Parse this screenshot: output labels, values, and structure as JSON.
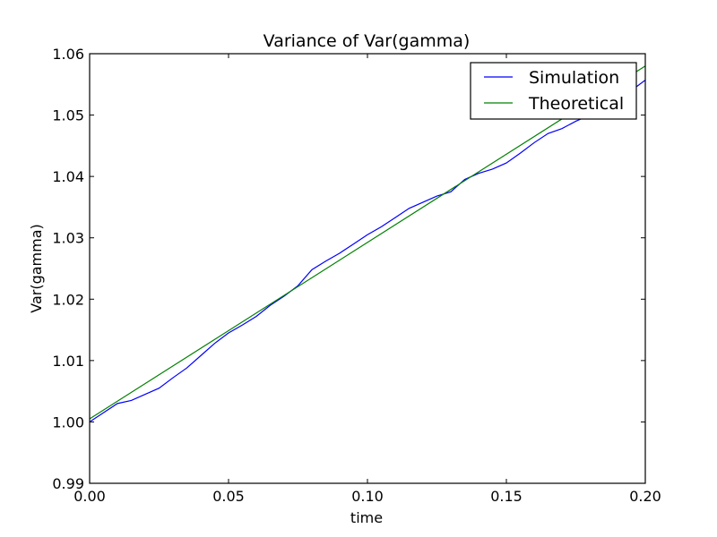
{
  "chart_data": {
    "type": "line",
    "title": "Variance of Var(gamma)",
    "xlabel": "time",
    "ylabel": "Var(gamma)",
    "xlim": [
      0.0,
      0.2
    ],
    "ylim": [
      0.99,
      1.06
    ],
    "xticks": [
      0.0,
      0.05,
      0.1,
      0.15,
      0.2
    ],
    "xtick_labels": [
      "0.00",
      "0.05",
      "0.10",
      "0.15",
      "0.20"
    ],
    "yticks": [
      0.99,
      1.0,
      1.01,
      1.02,
      1.03,
      1.04,
      1.05,
      1.06
    ],
    "ytick_labels": [
      "0.99",
      "1.00",
      "1.01",
      "1.02",
      "1.03",
      "1.04",
      "1.05",
      "1.06"
    ],
    "grid": false,
    "legend_position": "top-right",
    "series": [
      {
        "name": "Simulation",
        "color": "#0000ff",
        "x": [
          0.0,
          0.005,
          0.01,
          0.015,
          0.02,
          0.025,
          0.03,
          0.035,
          0.04,
          0.045,
          0.05,
          0.055,
          0.06,
          0.065,
          0.07,
          0.075,
          0.08,
          0.085,
          0.09,
          0.095,
          0.1,
          0.105,
          0.11,
          0.115,
          0.12,
          0.125,
          0.13,
          0.135,
          0.14,
          0.145,
          0.15,
          0.155,
          0.16,
          0.165,
          0.17,
          0.175,
          0.18,
          0.185,
          0.19,
          0.195,
          0.2
        ],
        "y": [
          1.0,
          1.0015,
          1.003,
          1.0035,
          1.0045,
          1.0055,
          1.0072,
          1.0088,
          1.0108,
          1.0128,
          1.0145,
          1.0158,
          1.0172,
          1.019,
          1.0205,
          1.0222,
          1.0248,
          1.0262,
          1.0275,
          1.029,
          1.0305,
          1.0318,
          1.0333,
          1.0348,
          1.0358,
          1.0368,
          1.0375,
          1.0395,
          1.0405,
          1.0412,
          1.0422,
          1.0438,
          1.0455,
          1.047,
          1.0478,
          1.049,
          1.05,
          1.0515,
          1.053,
          1.054,
          1.0557
        ]
      },
      {
        "name": "Theoretical",
        "color": "#008000",
        "x": [
          0.0,
          0.2
        ],
        "y": [
          1.0005,
          1.058
        ]
      }
    ]
  }
}
